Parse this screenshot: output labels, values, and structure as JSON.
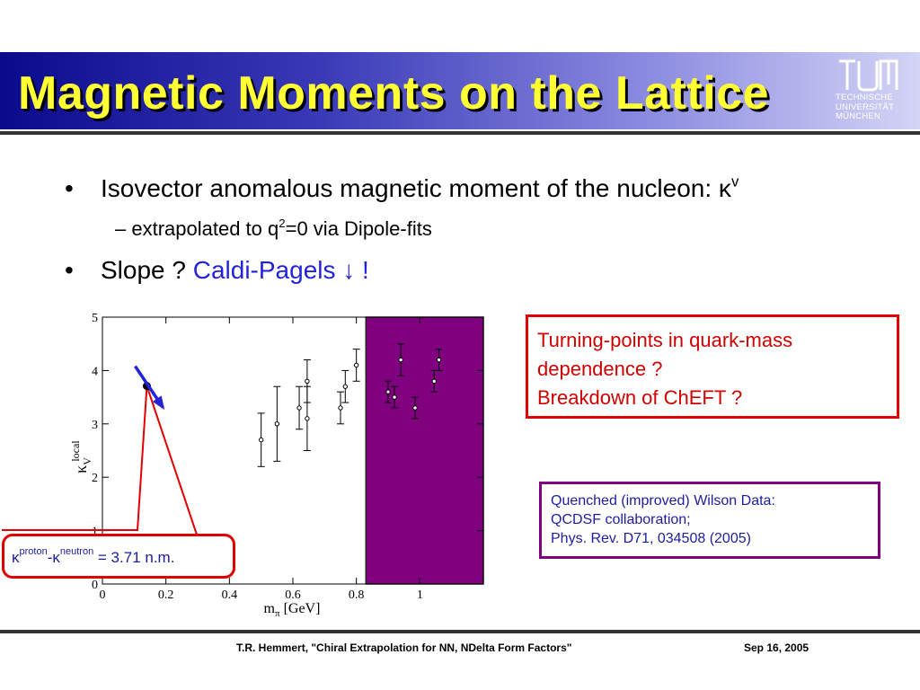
{
  "slide": {
    "title": "Magnetic Moments on the Lattice",
    "logo": {
      "lines": [
        "TECHNISCHE",
        "UNIVERSITÄT",
        "MÜNCHEN"
      ]
    },
    "bullets": {
      "b1_text": "Isovector anomalous magnetic moment of the nucleon: κ",
      "b1_sup": "v",
      "b2_prefix": "extrapolated to q",
      "b2_sup": "2",
      "b2_suffix": "=0 via Dipole-fits",
      "b3_text": "Slope ? ",
      "b3_link": "Caldi-Pagels ↓ !"
    },
    "callouts": {
      "red_lines": [
        "Turning-points in quark-mass",
        "dependence ?",
        "Breakdown of ChEFT ?"
      ],
      "purple_lines": [
        "Quenched (improved) Wilson Data:",
        "QCDSF collaboration;",
        "Phys. Rev. D71, 034508 (2005)"
      ],
      "kappa_a": "κ",
      "kappa_a_sup": "proton",
      "kappa_b": "-κ",
      "kappa_b_sup": "neutron",
      "kappa_value": " = 3.71 n.m."
    },
    "footer": {
      "left": "T.R. Hemmert, \"Chiral Extrapolation for NN, NDelta Form Factors\"",
      "right": "Sep 16, 2005"
    },
    "colors": {
      "title": "#ffff33",
      "accent_red": "#e00000",
      "band": "#800080",
      "arrow": "#2323d8"
    }
  },
  "chart_data": {
    "type": "scatter",
    "xlabel_main": "m",
    "xlabel_sub": "π",
    "xlabel_unit": " [GeV]",
    "ylabel_main": "κ",
    "ylabel_sub": "V",
    "ylabel_sup": "local",
    "xlim": [
      0,
      1.2
    ],
    "ylim": [
      0,
      5
    ],
    "xticks": [
      0,
      0.2,
      0.4,
      0.6,
      0.8,
      1
    ],
    "xtick_labels": [
      "0",
      "0.2",
      "0.4",
      "0.6",
      "0.8",
      "1"
    ],
    "yticks": [
      0,
      1,
      2,
      3,
      4,
      5
    ],
    "ytick_labels": [
      "0",
      "1",
      "2",
      "3",
      "4",
      "5"
    ],
    "grid": false,
    "physical_point": {
      "x": 0.14,
      "y": 3.71
    },
    "shaded_band": {
      "x0": 0.83,
      "x1": 1.2
    },
    "points": [
      {
        "x": 0.5,
        "y": 2.7,
        "err": 0.5
      },
      {
        "x": 0.55,
        "y": 3.0,
        "err": 0.7
      },
      {
        "x": 0.62,
        "y": 3.3,
        "err": 0.4
      },
      {
        "x": 0.645,
        "y": 3.1,
        "err": 0.6
      },
      {
        "x": 0.645,
        "y": 3.8,
        "err": 0.4
      },
      {
        "x": 0.75,
        "y": 3.3,
        "err": 0.3
      },
      {
        "x": 0.765,
        "y": 3.7,
        "err": 0.3
      },
      {
        "x": 0.8,
        "y": 4.1,
        "err": 0.3
      },
      {
        "x": 0.9,
        "y": 3.6,
        "err": 0.2
      },
      {
        "x": 0.92,
        "y": 3.5,
        "err": 0.2
      },
      {
        "x": 0.94,
        "y": 4.2,
        "err": 0.3
      },
      {
        "x": 0.985,
        "y": 3.3,
        "err": 0.2
      },
      {
        "x": 1.045,
        "y": 3.8,
        "err": 0.2
      },
      {
        "x": 1.06,
        "y": 4.2,
        "err": 0.2
      }
    ]
  }
}
